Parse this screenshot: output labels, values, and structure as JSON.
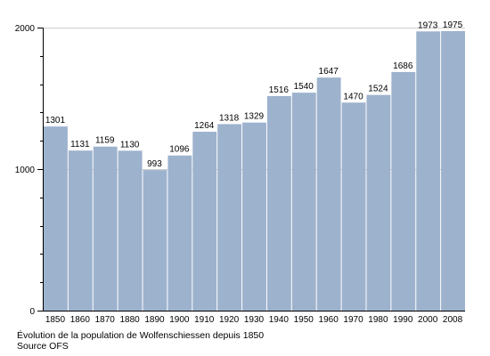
{
  "chart_data": {
    "type": "bar",
    "title": "Évolution de la population de Wolfenschiessen depuis 1850",
    "source": "Source OFS",
    "xlabel": "",
    "ylabel": "",
    "categories": [
      "1850",
      "1860",
      "1870",
      "1880",
      "1890",
      "1900",
      "1910",
      "1920",
      "1930",
      "1940",
      "1950",
      "1960",
      "1970",
      "1980",
      "1990",
      "2000",
      "2008"
    ],
    "values": [
      1301,
      1131,
      1159,
      1130,
      993,
      1096,
      1264,
      1318,
      1329,
      1516,
      1540,
      1647,
      1470,
      1524,
      1686,
      1973,
      1975
    ],
    "data_labels": [
      "1301",
      "1131",
      "1159",
      "1130",
      "993",
      "1096",
      "1264",
      "1318",
      "1329",
      "1516",
      "1540",
      "1647",
      "1470",
      "1524",
      "1686",
      "1973",
      "1975"
    ],
    "ylim": [
      0,
      2000
    ],
    "yticks": [
      0,
      1000,
      2000
    ],
    "ytick_labels": [
      "0",
      "1000",
      "2000"
    ],
    "y_minor_step": 200,
    "grid": "horizontal gridlines at labeled ticks",
    "bar_color": "#9db2cd",
    "grid_color": "#cccccc",
    "axis_color": "#000000"
  }
}
